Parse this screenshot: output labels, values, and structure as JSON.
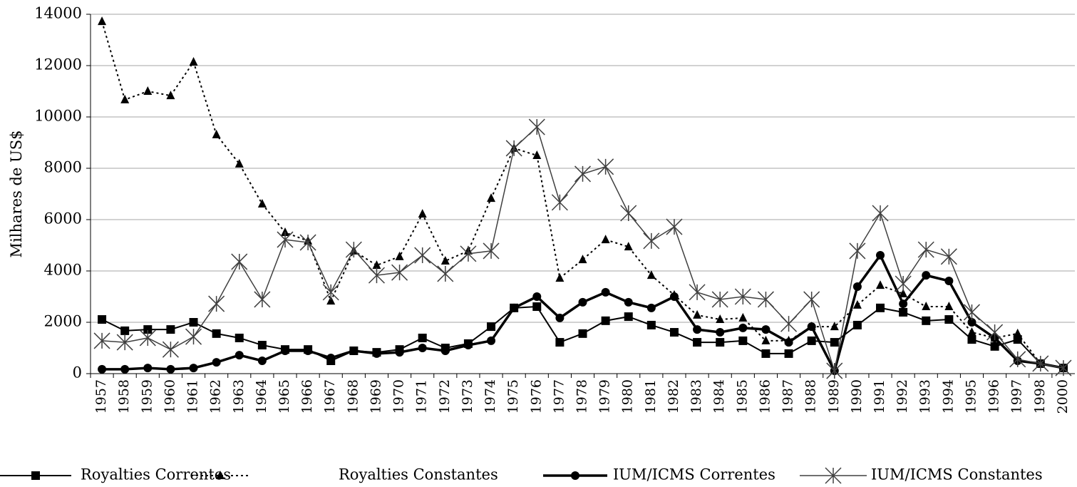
{
  "chart_data": {
    "type": "line",
    "y_label": "Milhares de US$",
    "categories": [
      "1957",
      "1958",
      "1959",
      "1960",
      "1961",
      "1962",
      "1963",
      "1964",
      "1965",
      "1966",
      "1967",
      "1968",
      "1969",
      "1970",
      "1971",
      "1972",
      "1973",
      "1974",
      "1975",
      "1976",
      "1977",
      "1978",
      "1979",
      "1980",
      "1981",
      "1982",
      "1983",
      "1984",
      "1985",
      "1986",
      "1987",
      "1988",
      "1989",
      "1990",
      "1991",
      "1992",
      "1993",
      "1994",
      "1995",
      "1996",
      "1997",
      "1998",
      "2000"
    ],
    "ylim": [
      0,
      14000
    ],
    "yticks": [
      0,
      2000,
      4000,
      6000,
      8000,
      10000,
      12000,
      14000
    ],
    "grid": true,
    "legend": "bottom",
    "series": [
      {
        "name": "Royalties Correntes",
        "color": "#000000",
        "marker": "square",
        "dash": false,
        "width": 2,
        "values": [
          2110,
          1670,
          1720,
          1720,
          2000,
          1560,
          1390,
          1110,
          940,
          940,
          500,
          890,
          830,
          940,
          1390,
          1000,
          1170,
          1830,
          2560,
          2610,
          1220,
          1560,
          2060,
          2220,
          1890,
          1610,
          1220,
          1220,
          1280,
          780,
          780,
          1280,
          1220,
          1890,
          2560,
          2390,
          2060,
          2110,
          1330,
          1060,
          1330,
          390,
          220
        ]
      },
      {
        "name": "Royalties Constantes",
        "color": "#000000",
        "marker": "triangle",
        "dash": true,
        "width": 2,
        "values": [
          13720,
          10670,
          11000,
          10830,
          12140,
          9310,
          8170,
          6610,
          5500,
          5170,
          2830,
          4780,
          4220,
          4560,
          6220,
          4390,
          4780,
          6830,
          8780,
          8500,
          3720,
          4440,
          5220,
          4940,
          3830,
          3060,
          2280,
          2110,
          2170,
          1280,
          1280,
          1830,
          1830,
          2670,
          3440,
          3110,
          2610,
          2610,
          1610,
          1390,
          1560,
          390,
          220
        ]
      },
      {
        "name": "IUM/ICMS Correntes",
        "color": "#000000",
        "marker": "circle",
        "dash": false,
        "width": 3.5,
        "values": [
          170,
          170,
          220,
          170,
          220,
          440,
          720,
          500,
          890,
          890,
          610,
          890,
          780,
          830,
          1000,
          890,
          1110,
          1280,
          2560,
          3000,
          2170,
          2780,
          3170,
          2780,
          2560,
          3000,
          1720,
          1610,
          1780,
          1720,
          1220,
          1830,
          110,
          3390,
          4610,
          2720,
          3830,
          3610,
          2000,
          1390,
          500,
          390,
          220
        ]
      },
      {
        "name": "IUM/ICMS Constantes",
        "color": "#404040",
        "marker": "star",
        "dash": false,
        "width": 1.5,
        "values": [
          1280,
          1220,
          1390,
          940,
          1440,
          2720,
          4360,
          2890,
          5220,
          5110,
          3170,
          4830,
          3830,
          3940,
          4610,
          3890,
          4670,
          4780,
          8780,
          9610,
          6670,
          7780,
          8060,
          6250,
          5170,
          5720,
          3170,
          2890,
          3000,
          2890,
          1940,
          2890,
          110,
          4780,
          6250,
          3500,
          4830,
          4560,
          2390,
          1610,
          560,
          390,
          220
        ]
      }
    ]
  }
}
